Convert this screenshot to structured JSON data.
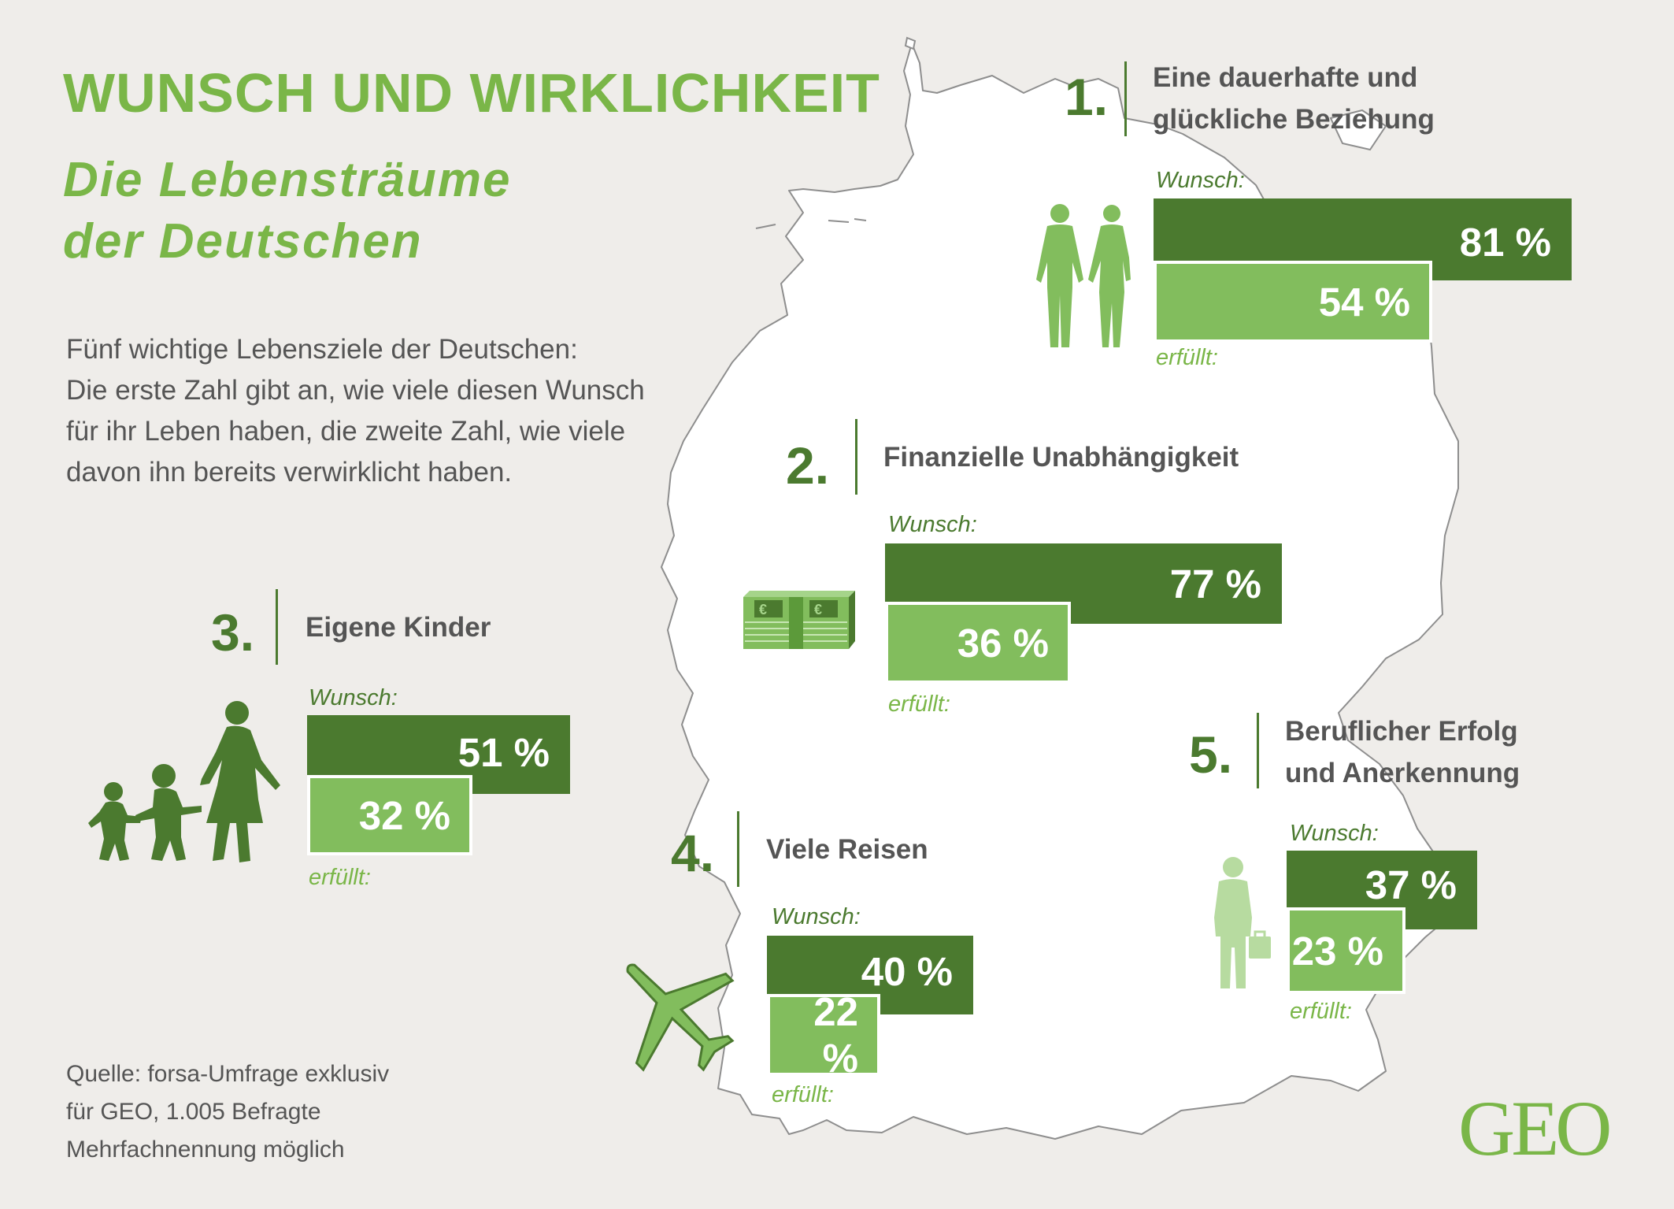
{
  "title": "WUNSCH UND WIRKLICHKEIT",
  "subtitle": [
    "Die Lebensträume",
    "der Deutschen"
  ],
  "intro": [
    "Fünf wichtige Lebensziele der Deutschen:",
    "Die erste Zahl gibt an, wie viele diesen Wunsch",
    "für ihr Leben haben, die zweite Zahl, wie viele",
    "davon ihn bereits verwirklicht haben."
  ],
  "source": [
    "Quelle: forsa-Umfrage exklusiv",
    "für GEO, 1.005 Befragte",
    "Mehrfachnennung möglich"
  ],
  "logo": "GEO",
  "labels": {
    "wunsch": "Wunsch:",
    "erfuellt": "erfüllt:"
  },
  "colors": {
    "dark_green": "#4b7a2f",
    "light_green": "#82bd5d",
    "title_green": "#7ab648",
    "background": "#efedea"
  },
  "goals": [
    {
      "rank": "1.",
      "title": [
        "Eine dauerhafte und",
        "glückliche Beziehung"
      ],
      "wunsch": "81 %",
      "erfuellt": "54 %",
      "icon": "couple-icon"
    },
    {
      "rank": "2.",
      "title": [
        "Finanzielle Unabhängigkeit"
      ],
      "wunsch": "77 %",
      "erfuellt": "36 %",
      "icon": "money-stack-icon"
    },
    {
      "rank": "3.",
      "title": [
        "Eigene Kinder"
      ],
      "wunsch": "51 %",
      "erfuellt": "32 %",
      "icon": "family-icon"
    },
    {
      "rank": "4.",
      "title": [
        "Viele Reisen"
      ],
      "wunsch": "40 %",
      "erfuellt": "22 %",
      "icon": "airplane-icon"
    },
    {
      "rank": "5.",
      "title": [
        "Beruflicher Erfolg",
        "und Anerkennung"
      ],
      "wunsch": "37 %",
      "erfuellt": "23 %",
      "icon": "businessman-icon"
    }
  ],
  "chart_data": {
    "type": "bar",
    "categories": [
      "Eine dauerhafte und glückliche Beziehung",
      "Finanzielle Unabhängigkeit",
      "Eigene Kinder",
      "Viele Reisen",
      "Beruflicher Erfolg und Anerkennung"
    ],
    "series": [
      {
        "name": "Wunsch",
        "values": [
          81,
          77,
          51,
          40,
          37
        ]
      },
      {
        "name": "erfüllt",
        "values": [
          54,
          36,
          32,
          22,
          23
        ]
      }
    ],
    "unit": "%",
    "title": "WUNSCH UND WIRKLICHKEIT",
    "subtitle": "Die Lebensträume der Deutschen",
    "xlabel": "",
    "ylabel": "",
    "legend": "none",
    "grid": false
  }
}
